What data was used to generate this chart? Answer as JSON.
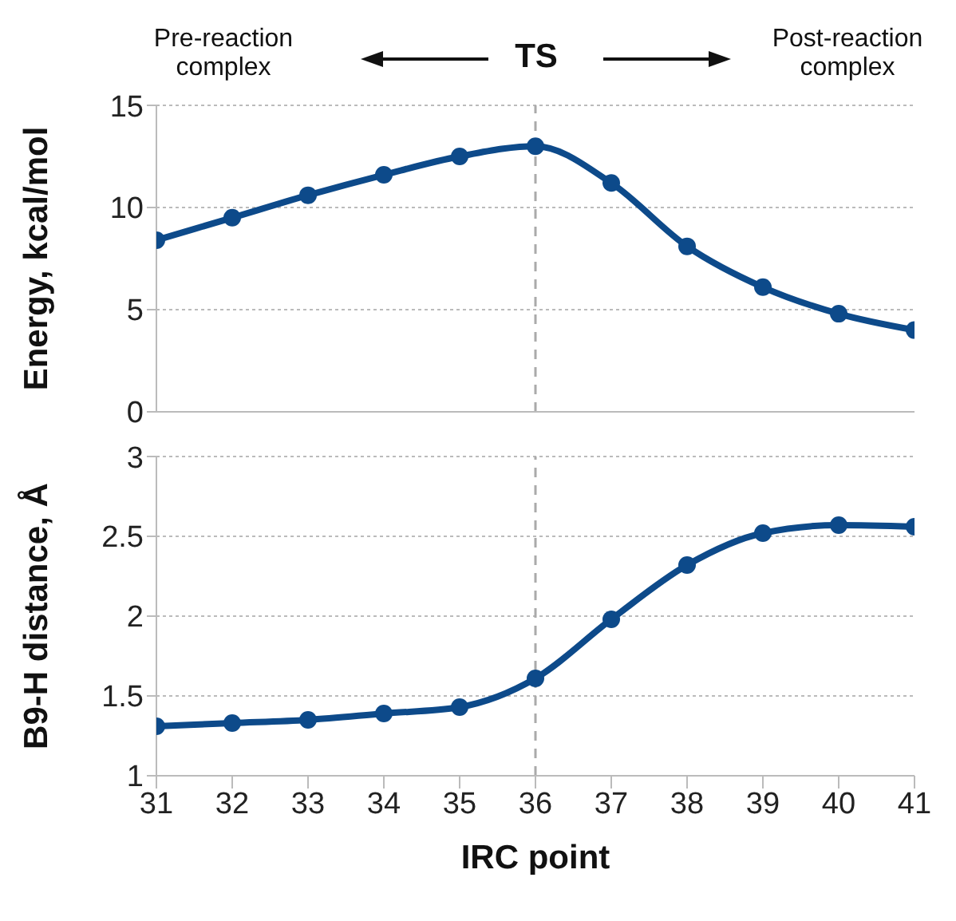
{
  "chart_data": [
    {
      "type": "line",
      "annotations": [
        "Pre-reaction complex",
        "TS",
        "Post-reaction complex"
      ],
      "ylabel": "Energy, kcal/mol",
      "x": [
        31,
        32,
        33,
        34,
        35,
        36,
        37,
        38,
        39,
        40,
        41
      ],
      "series": [
        {
          "color": "#0d4a8a",
          "values": [
            8.4,
            9.5,
            10.6,
            11.6,
            12.5,
            13.0,
            11.2,
            8.1,
            6.1,
            4.8,
            4.0
          ]
        }
      ],
      "xlim": [
        31,
        41
      ],
      "ylim": [
        0,
        15
      ],
      "yticks": [
        0,
        5,
        10,
        15
      ],
      "grid": "y",
      "marker": "circle",
      "line_style": "solid",
      "tick_labels": "y",
      "ref_lines": [
        {
          "axis": "x",
          "value": 36,
          "color": "#aaaaaa",
          "line_style": "dashed"
        }
      ]
    },
    {
      "type": "line",
      "xlabel": "IRC point",
      "ylabel": "B9-H distance, Å",
      "x": [
        31,
        32,
        33,
        34,
        35,
        36,
        37,
        38,
        39,
        40,
        41
      ],
      "series": [
        {
          "color": "#0d4a8a",
          "values": [
            1.31,
            1.33,
            1.35,
            1.39,
            1.43,
            1.61,
            1.98,
            2.32,
            2.52,
            2.57,
            2.56
          ]
        }
      ],
      "xlim": [
        31,
        41
      ],
      "xticks": [
        31,
        32,
        33,
        34,
        35,
        36,
        37,
        38,
        39,
        40,
        41
      ],
      "ylim": [
        1,
        3
      ],
      "yticks": [
        1,
        1.5,
        2,
        2.5,
        3
      ],
      "grid": "y",
      "marker": "circle",
      "line_style": "solid",
      "ref_lines": [
        {
          "axis": "x",
          "value": 36,
          "color": "#aaaaaa",
          "line_style": "dashed"
        }
      ]
    }
  ]
}
